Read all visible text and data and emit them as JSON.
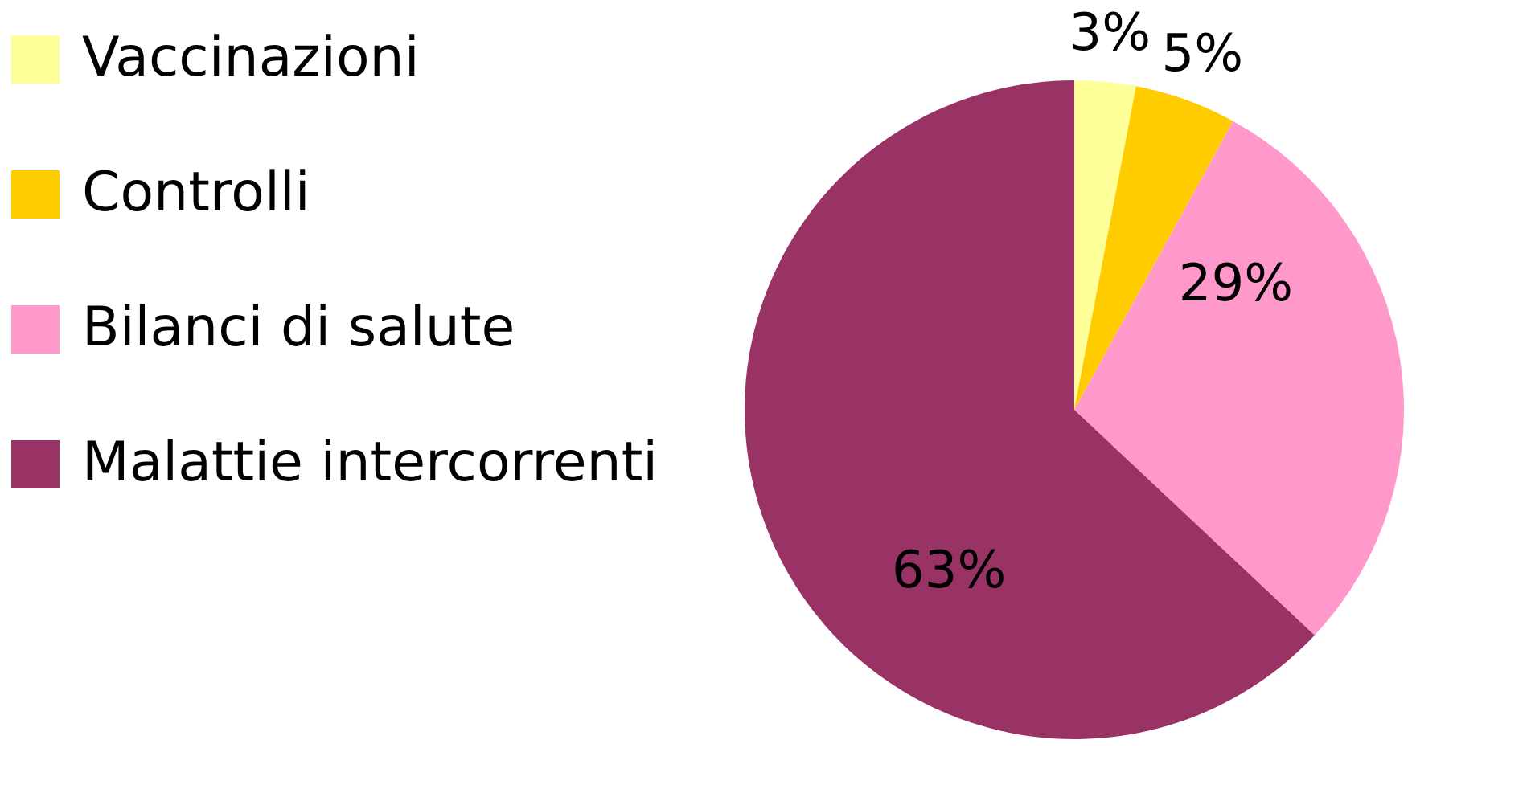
{
  "chart_data": {
    "type": "pie",
    "categories": [
      "Vaccinazioni",
      "Controlli",
      "Bilanci di salute",
      "Malattie intercorrenti"
    ],
    "values": [
      3,
      5,
      29,
      63
    ],
    "colors": [
      "#ffff99",
      "#ffcc00",
      "#ff99cc",
      "#993366"
    ],
    "value_labels": [
      "3%",
      "5%",
      "29%",
      "63%"
    ],
    "legend": "left"
  }
}
